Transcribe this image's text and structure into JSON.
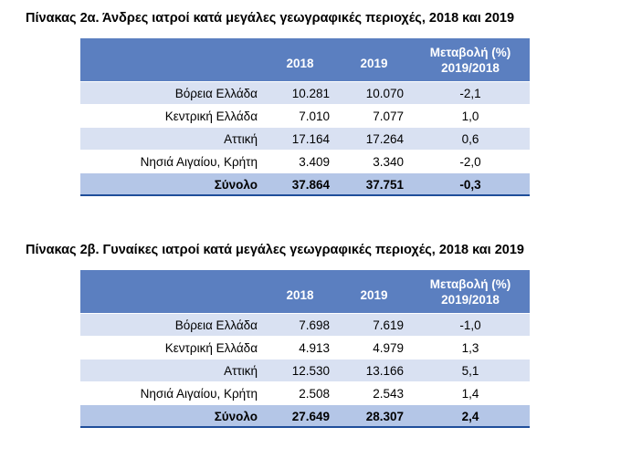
{
  "table_a": {
    "title": "Πίνακας 2α. Άνδρες ιατροί κατά μεγάλες γεωγραφικές περιοχές, 2018 και 2019",
    "header": {
      "region": "",
      "y2018": "2018",
      "y2019": "2019",
      "change_line1": "Μεταβολή (%)",
      "change_line2": "2019/2018"
    },
    "rows": [
      {
        "region": "Βόρεια Ελλάδα",
        "y2018": "10.281",
        "y2019": "10.070",
        "change": "-2,1"
      },
      {
        "region": "Κεντρική Ελλάδα",
        "y2018": "7.010",
        "y2019": "7.077",
        "change": "1,0"
      },
      {
        "region": "Αττική",
        "y2018": "17.164",
        "y2019": "17.264",
        "change": "0,6"
      },
      {
        "region": "Νησιά Αιγαίου, Κρήτη",
        "y2018": "3.409",
        "y2019": "3.340",
        "change": "-2,0"
      }
    ],
    "total": {
      "region": "Σύνολο",
      "y2018": "37.864",
      "y2019": "37.751",
      "change": "-0,3"
    }
  },
  "table_b": {
    "title": "Πίνακας 2β. Γυναίκες ιατροί κατά μεγάλες γεωγραφικές περιοχές, 2018 και 2019",
    "header": {
      "region": "",
      "y2018": "2018",
      "y2019": "2019",
      "change_line1": "Μεταβολή (%)",
      "change_line2": "2019/2018"
    },
    "rows": [
      {
        "region": "Βόρεια Ελλάδα",
        "y2018": "7.698",
        "y2019": "7.619",
        "change": "-1,0"
      },
      {
        "region": "Κεντρική Ελλάδα",
        "y2018": "4.913",
        "y2019": "4.979",
        "change": "1,3"
      },
      {
        "region": "Αττική",
        "y2018": "12.530",
        "y2019": "13.166",
        "change": "5,1"
      },
      {
        "region": "Νησιά Αιγαίου, Κρήτη",
        "y2018": "2.508",
        "y2019": "2.543",
        "change": "1,4"
      }
    ],
    "total": {
      "region": "Σύνολο",
      "y2018": "27.649",
      "y2019": "28.307",
      "change": "2,4"
    }
  }
}
